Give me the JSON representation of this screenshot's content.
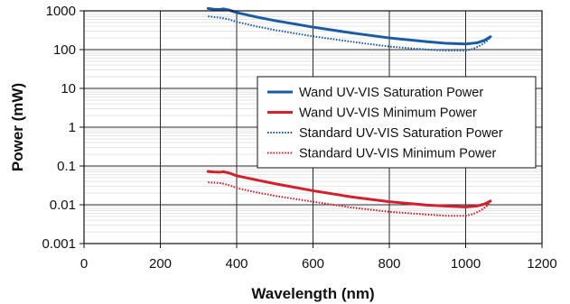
{
  "chart_data": {
    "type": "line",
    "title": "",
    "xlabel": "Wavelength (nm)",
    "ylabel": "Power (mW)",
    "xlim": [
      0,
      1200
    ],
    "ylim": [
      0.001,
      1000
    ],
    "y_scale": "log",
    "grid": true,
    "legend_position": "right",
    "x_ticks": [
      {
        "value": 0,
        "label": "0"
      },
      {
        "value": 200,
        "label": "200"
      },
      {
        "value": 400,
        "label": "400"
      },
      {
        "value": 600,
        "label": "600"
      },
      {
        "value": 800,
        "label": "800"
      },
      {
        "value": 1000,
        "label": "1000"
      },
      {
        "value": 1200,
        "label": "1200"
      }
    ],
    "y_ticks": [
      {
        "value": 0.001,
        "label": "0.001"
      },
      {
        "value": 0.01,
        "label": "0.01"
      },
      {
        "value": 0.1,
        "label": "0.1"
      },
      {
        "value": 1,
        "label": "1"
      },
      {
        "value": 10,
        "label": "10"
      },
      {
        "value": 100,
        "label": "100"
      },
      {
        "value": 1000,
        "label": "1000"
      }
    ],
    "series": [
      {
        "name": "Wand UV-VIS Saturation Power",
        "color": "#1a5ba6",
        "dash": "solid",
        "x": [
          325,
          340,
          355,
          365,
          380,
          400,
          450,
          500,
          600,
          700,
          800,
          900,
          950,
          1000,
          1030,
          1050,
          1065
        ],
        "y": [
          1150,
          1100,
          1080,
          1120,
          1050,
          900,
          700,
          560,
          380,
          270,
          200,
          160,
          145,
          140,
          150,
          175,
          215
        ]
      },
      {
        "name": "Wand UV-VIS Minimum Power",
        "color": "#d3202c",
        "dash": "solid",
        "x": [
          325,
          340,
          355,
          365,
          380,
          400,
          450,
          500,
          600,
          700,
          800,
          900,
          950,
          1000,
          1030,
          1050,
          1065
        ],
        "y": [
          0.072,
          0.07,
          0.069,
          0.071,
          0.066,
          0.056,
          0.044,
          0.035,
          0.023,
          0.016,
          0.012,
          0.0098,
          0.0092,
          0.0088,
          0.0093,
          0.0105,
          0.0125
        ]
      },
      {
        "name": "Standard UV-VIS Saturation Power",
        "color": "#1a5ba6",
        "dash": "dotted",
        "x": [
          325,
          340,
          360,
          380,
          400,
          450,
          500,
          600,
          700,
          800,
          900,
          950,
          1000,
          1020,
          1040,
          1055,
          1065
        ],
        "y": [
          720,
          690,
          660,
          600,
          520,
          400,
          320,
          220,
          160,
          120,
          100,
          95,
          95,
          105,
          130,
          165,
          205
        ]
      },
      {
        "name": "Standard UV-VIS Minimum Power",
        "color": "#d3202c",
        "dash": "dotted",
        "x": [
          325,
          340,
          360,
          380,
          400,
          450,
          500,
          600,
          700,
          800,
          900,
          950,
          1000,
          1020,
          1040,
          1055,
          1065
        ],
        "y": [
          0.038,
          0.037,
          0.036,
          0.032,
          0.027,
          0.021,
          0.017,
          0.012,
          0.0085,
          0.0066,
          0.0056,
          0.0052,
          0.0052,
          0.0058,
          0.0072,
          0.0092,
          0.0118
        ]
      }
    ]
  }
}
